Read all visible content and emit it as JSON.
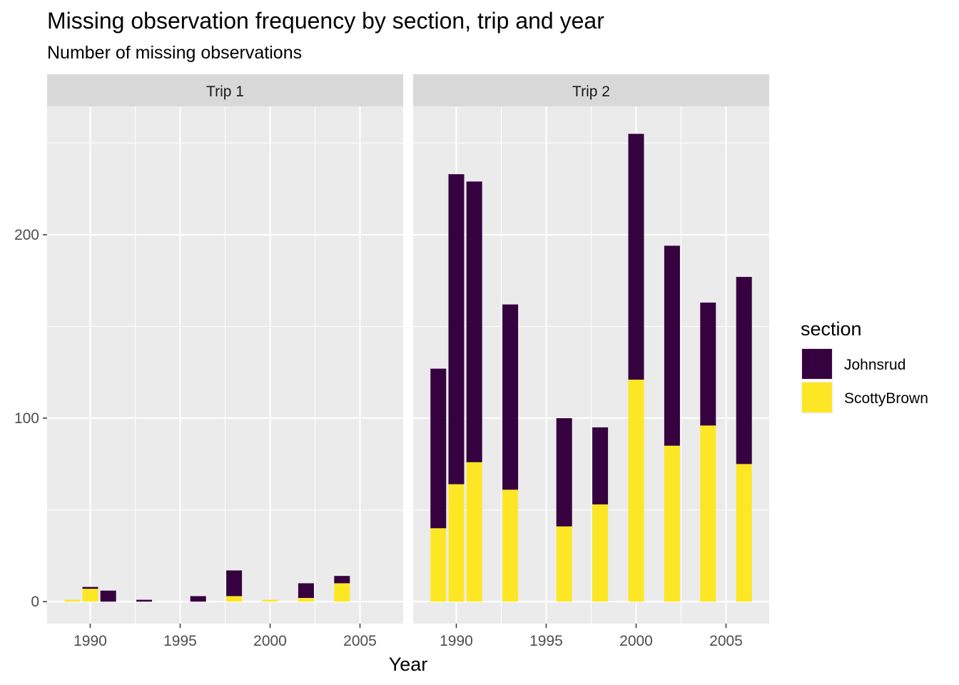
{
  "chart_data": {
    "type": "bar",
    "stacked": true,
    "title": "Missing observation frequency by section, trip and year",
    "subtitle": "Number of missing observations",
    "xlabel": "Year",
    "ylabel": "",
    "x_ticks": [
      1990,
      1995,
      2000,
      2005
    ],
    "y_ticks": [
      0,
      100,
      200
    ],
    "xlim": [
      1987.6,
      2007.4
    ],
    "ylim": [
      -12,
      270
    ],
    "grid": true,
    "legend": {
      "title": "section",
      "placement": "right",
      "entries": [
        "Johnsrud",
        "ScottyBrown"
      ]
    },
    "colors": {
      "Johnsrud": "#35023f",
      "ScottyBrown": "#fde725"
    },
    "panels": [
      {
        "label": "Trip 1",
        "data": [
          {
            "year": 1989,
            "ScottyBrown": 1,
            "Johnsrud": 0
          },
          {
            "year": 1990,
            "ScottyBrown": 7,
            "Johnsrud": 1
          },
          {
            "year": 1991,
            "ScottyBrown": 0,
            "Johnsrud": 6
          },
          {
            "year": 1993,
            "ScottyBrown": 0,
            "Johnsrud": 1
          },
          {
            "year": 1996,
            "ScottyBrown": 0,
            "Johnsrud": 3
          },
          {
            "year": 1998,
            "ScottyBrown": 3,
            "Johnsrud": 14
          },
          {
            "year": 2000,
            "ScottyBrown": 1,
            "Johnsrud": 0
          },
          {
            "year": 2002,
            "ScottyBrown": 2,
            "Johnsrud": 8
          },
          {
            "year": 2004,
            "ScottyBrown": 10,
            "Johnsrud": 4
          }
        ]
      },
      {
        "label": "Trip 2",
        "data": [
          {
            "year": 1989,
            "ScottyBrown": 40,
            "Johnsrud": 87
          },
          {
            "year": 1990,
            "ScottyBrown": 64,
            "Johnsrud": 169
          },
          {
            "year": 1991,
            "ScottyBrown": 76,
            "Johnsrud": 153
          },
          {
            "year": 1993,
            "ScottyBrown": 61,
            "Johnsrud": 101
          },
          {
            "year": 1996,
            "ScottyBrown": 41,
            "Johnsrud": 59
          },
          {
            "year": 1998,
            "ScottyBrown": 53,
            "Johnsrud": 42
          },
          {
            "year": 2000,
            "ScottyBrown": 121,
            "Johnsrud": 134
          },
          {
            "year": 2002,
            "ScottyBrown": 85,
            "Johnsrud": 109
          },
          {
            "year": 2004,
            "ScottyBrown": 96,
            "Johnsrud": 67
          },
          {
            "year": 2006,
            "ScottyBrown": 75,
            "Johnsrud": 102
          }
        ]
      }
    ]
  }
}
